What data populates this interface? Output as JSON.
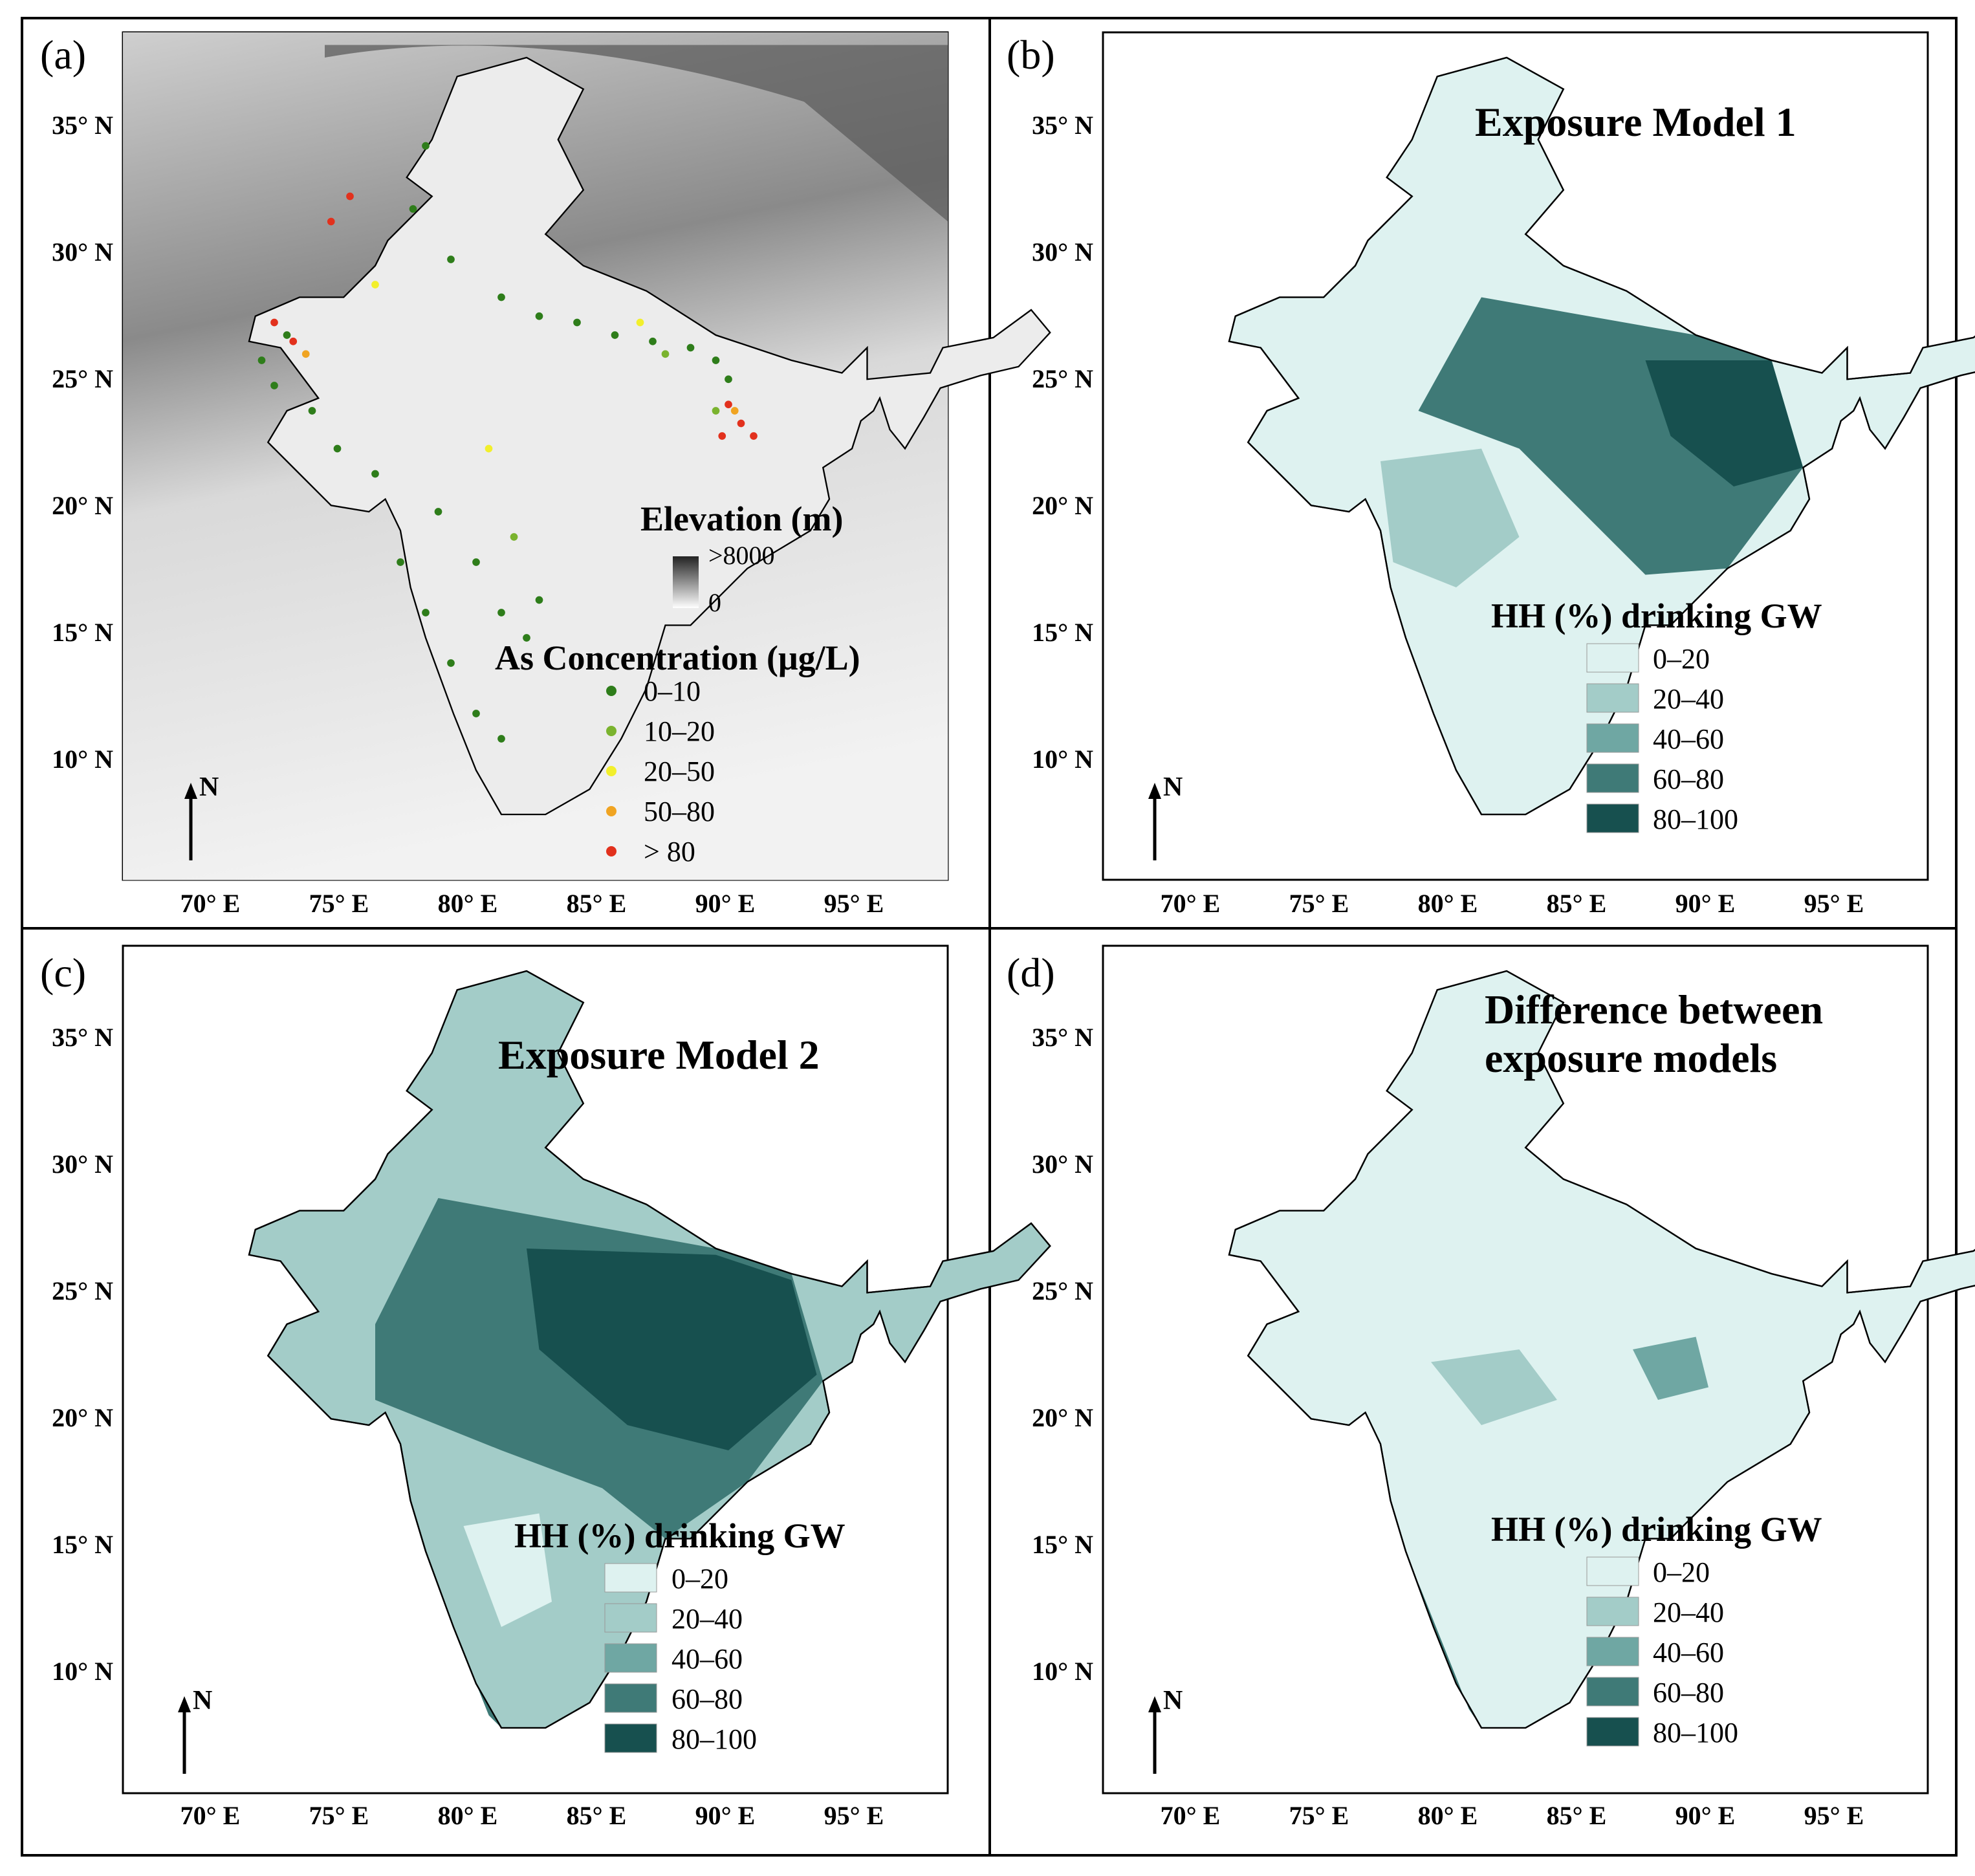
{
  "figure": {
    "lat_ticks": [
      "35° N",
      "30° N",
      "25° N",
      "20° N",
      "15° N",
      "10° N"
    ],
    "lon_ticks": [
      "70° E",
      "75° E",
      "80° E",
      "85° E",
      "90° E",
      "95° E"
    ],
    "north_arrow_label": "N",
    "legend_colors": [
      "#def2f0",
      "#a3ccc8",
      "#6fa7a3",
      "#3f7a77",
      "#17504f"
    ],
    "legend_labels": [
      "0–20",
      "20–40",
      "40–60",
      "60–80",
      "80–100"
    ],
    "legend_title": "HH (%) drinking GW"
  },
  "panel_a": {
    "label": "(a)",
    "elevation_title": "Elevation (m)",
    "elevation_max": ">8000",
    "elevation_min": "0",
    "as_title": "As Concentration (μg/L)",
    "as_items": [
      {
        "label": "0–10",
        "color": "#2e7d1a"
      },
      {
        "label": "10–20",
        "color": "#7ab32e"
      },
      {
        "label": "20–50",
        "color": "#f2ef2c"
      },
      {
        "label": "50–80",
        "color": "#f0a422"
      },
      {
        "label": "> 80",
        "color": "#e2311d"
      }
    ]
  },
  "panel_b": {
    "label": "(b)",
    "title": "Exposure Model 1"
  },
  "panel_c": {
    "label": "(c)",
    "title": "Exposure Model 2"
  },
  "panel_d": {
    "label": "(d)",
    "title_line1": "Difference between",
    "title_line2": "exposure models"
  }
}
